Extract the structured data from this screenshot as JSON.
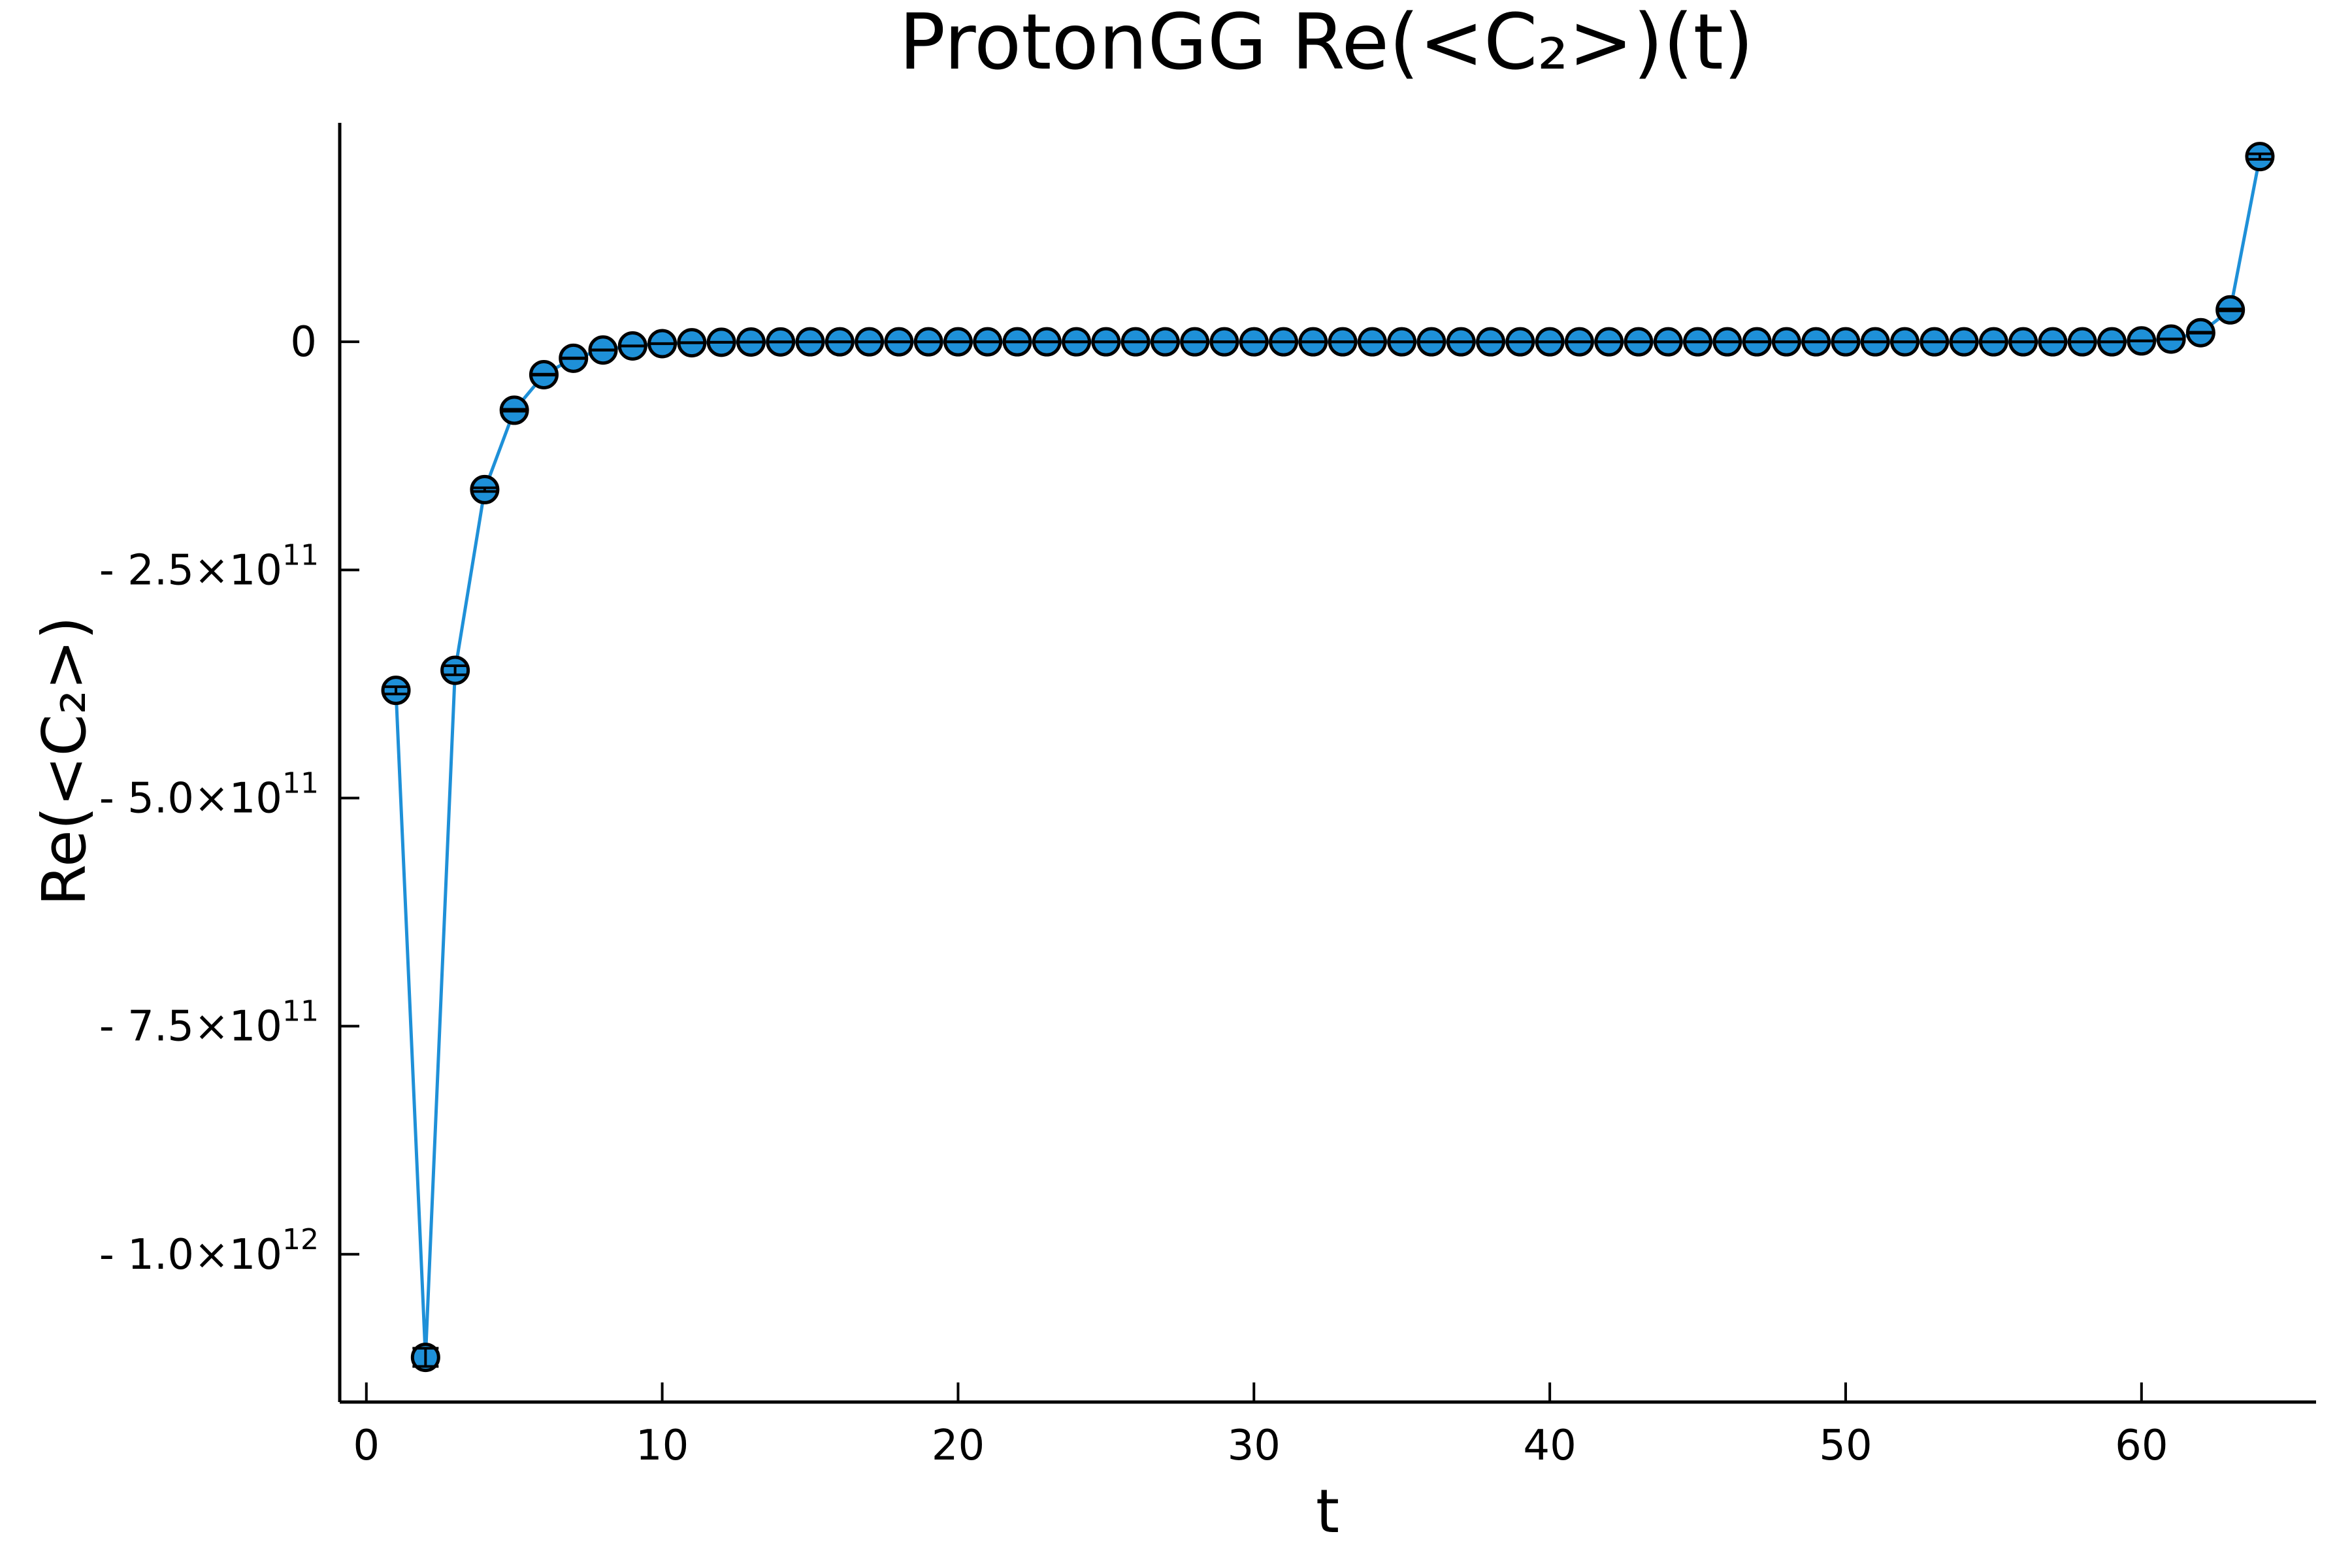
{
  "chart_data": {
    "type": "scatter",
    "title": "ProtonGG Re(<C₂>)(t)",
    "xlabel": "t",
    "ylabel": "Re(<C₂>)",
    "xlim": [
      -0.9,
      65.9
    ],
    "ylim": [
      -1162000000000.0,
      240000000000.0
    ],
    "grid": false,
    "legend": "none",
    "x_ticks": [
      {
        "value": 0,
        "label": "0"
      },
      {
        "value": 10,
        "label": "10"
      },
      {
        "value": 20,
        "label": "20"
      },
      {
        "value": 30,
        "label": "30"
      },
      {
        "value": 40,
        "label": "40"
      },
      {
        "value": 50,
        "label": "50"
      },
      {
        "value": 60,
        "label": "60"
      }
    ],
    "y_ticks": [
      {
        "value": 0,
        "mantissa": "0",
        "exponent": ""
      },
      {
        "value": -250000000000.0,
        "mantissa": "- 2.5×10",
        "exponent": "11"
      },
      {
        "value": -500000000000.0,
        "mantissa": "- 5.0×10",
        "exponent": "11"
      },
      {
        "value": -750000000000.0,
        "mantissa": "- 7.5×10",
        "exponent": "11"
      },
      {
        "value": -1000000000000.0,
        "mantissa": "- 1.0×10",
        "exponent": "12"
      }
    ],
    "series": [
      {
        "color": "#1e90d8",
        "marker_stroke": "#000000",
        "errorbar_color": "#000000",
        "x": [
          1,
          2,
          3,
          4,
          5,
          6,
          7,
          8,
          9,
          10,
          11,
          12,
          13,
          14,
          15,
          16,
          17,
          18,
          19,
          20,
          21,
          22,
          23,
          24,
          25,
          26,
          27,
          28,
          29,
          30,
          31,
          32,
          33,
          34,
          35,
          36,
          37,
          38,
          39,
          40,
          41,
          42,
          43,
          44,
          45,
          46,
          47,
          48,
          49,
          50,
          51,
          52,
          53,
          54,
          55,
          56,
          57,
          58,
          59,
          60,
          61,
          62,
          63,
          64
        ],
        "y": [
          -382000000000.0,
          -1113000000000.0,
          -360000000000.0,
          -162000000000.0,
          -75000000000.0,
          -36000000000.0,
          -18000000000.0,
          -9000000000.0,
          -4500000000.0,
          -2000000000.0,
          -1000000000.0,
          -500000000.0,
          -200000000.0,
          -100000000.0,
          0,
          0,
          0,
          0,
          0,
          0,
          0,
          0,
          0,
          0,
          0,
          0,
          0,
          0,
          0,
          0,
          0,
          0,
          0,
          0,
          0,
          0,
          0,
          0,
          0,
          0,
          0,
          0,
          0,
          0,
          0,
          0,
          0,
          0,
          0,
          0,
          0,
          0,
          0,
          0,
          0,
          0,
          0,
          0,
          0,
          1000000000.0,
          3000000000.0,
          10000000000.0,
          35000000000.0,
          203000000000.0
        ],
        "err": [
          4000000000.0,
          10000000000.0,
          5000000000.0,
          2000000000.0,
          1000000000.0,
          500000000.0,
          300000000.0,
          200000000.0,
          100000000.0,
          100000000.0,
          100000000.0,
          100000000.0,
          100000000.0,
          100000000.0,
          100000000.0,
          100000000.0,
          100000000.0,
          100000000.0,
          100000000.0,
          100000000.0,
          100000000.0,
          100000000.0,
          100000000.0,
          100000000.0,
          100000000.0,
          100000000.0,
          100000000.0,
          100000000.0,
          100000000.0,
          100000000.0,
          100000000.0,
          100000000.0,
          100000000.0,
          100000000.0,
          100000000.0,
          100000000.0,
          100000000.0,
          100000000.0,
          100000000.0,
          100000000.0,
          100000000.0,
          100000000.0,
          100000000.0,
          100000000.0,
          100000000.0,
          100000000.0,
          100000000.0,
          100000000.0,
          100000000.0,
          100000000.0,
          100000000.0,
          100000000.0,
          100000000.0,
          100000000.0,
          100000000.0,
          100000000.0,
          100000000.0,
          100000000.0,
          100000000.0,
          100000000.0,
          200000000.0,
          500000000.0,
          1000000000.0,
          3000000000.0
        ]
      }
    ]
  }
}
